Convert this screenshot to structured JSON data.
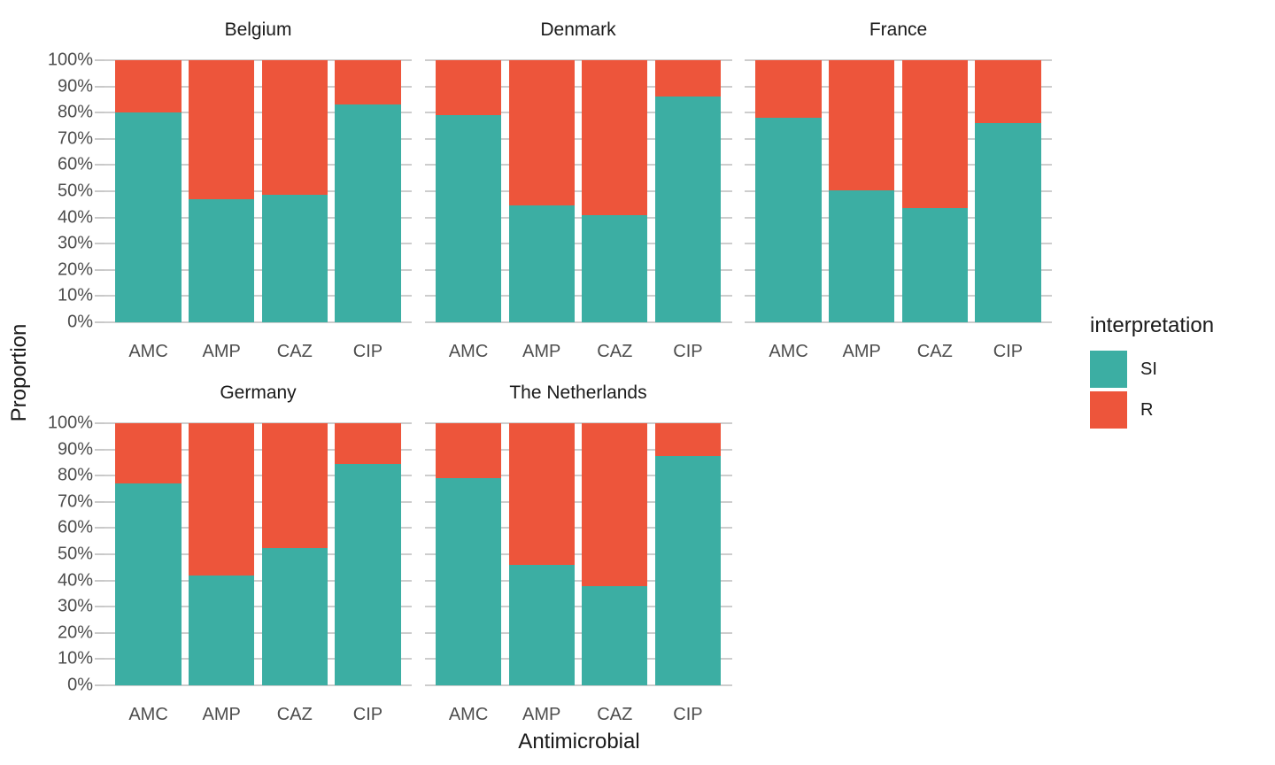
{
  "chart_data": {
    "type": "bar",
    "subtype": "stacked-percent-faceted",
    "title": "",
    "xlabel": "Antimicrobial",
    "ylabel": "Proportion",
    "ylim": [
      0,
      100
    ],
    "grid": true,
    "y_tick_labels": [
      "0%",
      "10%",
      "20%",
      "30%",
      "40%",
      "50%",
      "60%",
      "70%",
      "80%",
      "90%",
      "100%"
    ],
    "categories": [
      "AMC",
      "AMP",
      "CAZ",
      "CIP"
    ],
    "stack_order_bottom_to_top": [
      "SI",
      "R"
    ],
    "colors": {
      "SI": "#3CAEA3",
      "R": "#ED553B"
    },
    "legend": {
      "title": "interpretation",
      "position": "right",
      "entries": [
        {
          "label": "SI",
          "color": "#3CAEA3"
        },
        {
          "label": "R",
          "color": "#ED553B"
        }
      ]
    },
    "facets": [
      {
        "title": "Belgium",
        "series": [
          {
            "name": "SI",
            "values": [
              80,
              47,
              48.5,
              83
            ]
          },
          {
            "name": "R",
            "values": [
              20,
              53,
              51.5,
              17
            ]
          }
        ]
      },
      {
        "title": "Denmark",
        "series": [
          {
            "name": "SI",
            "values": [
              79,
              44.5,
              41,
              86
            ]
          },
          {
            "name": "R",
            "values": [
              21,
              55.5,
              59,
              14
            ]
          }
        ]
      },
      {
        "title": "France",
        "series": [
          {
            "name": "SI",
            "values": [
              78,
              50.5,
              43.5,
              76
            ]
          },
          {
            "name": "R",
            "values": [
              22,
              49.5,
              56.5,
              24
            ]
          }
        ]
      },
      {
        "title": "Germany",
        "series": [
          {
            "name": "SI",
            "values": [
              77,
              42,
              52.5,
              84.5
            ]
          },
          {
            "name": "R",
            "values": [
              23,
              58,
              47.5,
              15.5
            ]
          }
        ]
      },
      {
        "title": "The Netherlands",
        "series": [
          {
            "name": "SI",
            "values": [
              79,
              46,
              38,
              87.5
            ]
          },
          {
            "name": "R",
            "values": [
              21,
              54,
              62,
              12.5
            ]
          }
        ]
      }
    ]
  }
}
